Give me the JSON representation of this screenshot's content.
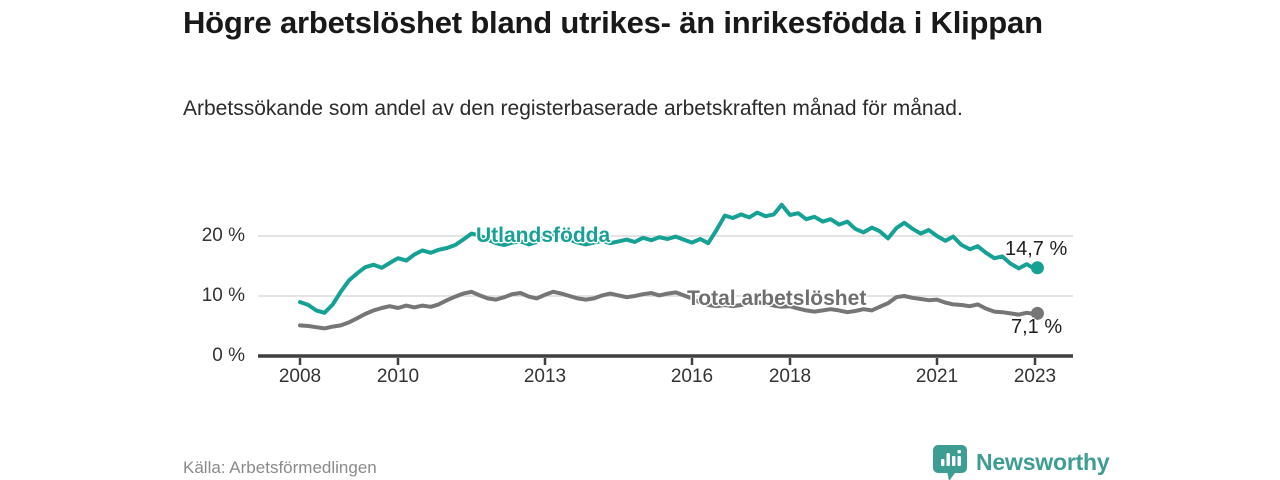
{
  "footer": {
    "source": "Källa: Arbetsförmedlingen",
    "brand": "Newsworthy"
  },
  "colors": {
    "foreign_born": "#16a195",
    "total": "#767676",
    "grid": "#dcdcdc",
    "axis": "#3f3f3f",
    "tick_text": "#333333",
    "value_label": "#1f1f1f",
    "brand_teal": "#3e9d93",
    "title_text": "#191919",
    "source_text": "#8a8a8a"
  },
  "chart_data": {
    "type": "line",
    "title": "Högre arbetslöshet bland utrikes- än inrikesfödda i Klippan",
    "subtitle": "Arbetssökande som andel av den registerbaserade arbetskraften månad för månad.",
    "unit": "%",
    "grid": "horizontal",
    "legend_position": "inline-labels",
    "xlim": [
      2007.9,
      2023.8
    ],
    "ylim": [
      0,
      27
    ],
    "x_ticks": [
      {
        "value": 2008,
        "label": "2008"
      },
      {
        "value": 2010,
        "label": "2010"
      },
      {
        "value": 2013,
        "label": "2013"
      },
      {
        "value": 2016,
        "label": "2016"
      },
      {
        "value": 2018,
        "label": "2018"
      },
      {
        "value": 2021,
        "label": "2021"
      },
      {
        "value": 2023,
        "label": "2023"
      }
    ],
    "y_ticks": [
      {
        "value": 0,
        "label": "0 %"
      },
      {
        "value": 10,
        "label": "10 %"
      },
      {
        "value": 20,
        "label": "20 %"
      }
    ],
    "series": [
      {
        "name": "Utlandsfödda",
        "color_key": "foreign_born",
        "end_label": "14,7 %",
        "end_value": 14.7,
        "points": [
          [
            2008.0,
            9.0
          ],
          [
            2008.17,
            8.5
          ],
          [
            2008.33,
            7.6
          ],
          [
            2008.5,
            7.2
          ],
          [
            2008.67,
            8.6
          ],
          [
            2008.83,
            10.7
          ],
          [
            2009.0,
            12.6
          ],
          [
            2009.17,
            13.8
          ],
          [
            2009.33,
            14.8
          ],
          [
            2009.5,
            15.2
          ],
          [
            2009.67,
            14.7
          ],
          [
            2009.83,
            15.5
          ],
          [
            2010.0,
            16.3
          ],
          [
            2010.17,
            15.9
          ],
          [
            2010.33,
            16.9
          ],
          [
            2010.5,
            17.6
          ],
          [
            2010.67,
            17.2
          ],
          [
            2010.83,
            17.7
          ],
          [
            2011.0,
            18.0
          ],
          [
            2011.17,
            18.5
          ],
          [
            2011.33,
            19.4
          ],
          [
            2011.5,
            20.4
          ],
          [
            2011.67,
            20.1
          ],
          [
            2011.83,
            19.4
          ],
          [
            2012.0,
            18.8
          ],
          [
            2012.17,
            18.5
          ],
          [
            2012.33,
            18.9
          ],
          [
            2012.5,
            19.1
          ],
          [
            2012.67,
            18.6
          ],
          [
            2012.83,
            19.0
          ],
          [
            2013.0,
            19.8
          ],
          [
            2013.17,
            20.2
          ],
          [
            2013.33,
            19.9
          ],
          [
            2013.5,
            19.4
          ],
          [
            2013.67,
            18.9
          ],
          [
            2013.83,
            18.6
          ],
          [
            2014.0,
            18.9
          ],
          [
            2014.17,
            19.2
          ],
          [
            2014.33,
            18.8
          ],
          [
            2014.5,
            19.1
          ],
          [
            2014.67,
            19.4
          ],
          [
            2014.83,
            19.0
          ],
          [
            2015.0,
            19.7
          ],
          [
            2015.17,
            19.3
          ],
          [
            2015.33,
            19.8
          ],
          [
            2015.5,
            19.5
          ],
          [
            2015.67,
            19.9
          ],
          [
            2015.83,
            19.4
          ],
          [
            2016.0,
            18.9
          ],
          [
            2016.17,
            19.5
          ],
          [
            2016.33,
            18.8
          ],
          [
            2016.5,
            21.0
          ],
          [
            2016.67,
            23.4
          ],
          [
            2016.83,
            23.0
          ],
          [
            2017.0,
            23.6
          ],
          [
            2017.17,
            23.1
          ],
          [
            2017.33,
            23.9
          ],
          [
            2017.5,
            23.3
          ],
          [
            2017.67,
            23.6
          ],
          [
            2017.83,
            25.2
          ],
          [
            2018.0,
            23.5
          ],
          [
            2018.17,
            23.8
          ],
          [
            2018.33,
            22.8
          ],
          [
            2018.5,
            23.2
          ],
          [
            2018.67,
            22.4
          ],
          [
            2018.83,
            22.8
          ],
          [
            2019.0,
            21.9
          ],
          [
            2019.17,
            22.4
          ],
          [
            2019.33,
            21.2
          ],
          [
            2019.5,
            20.6
          ],
          [
            2019.67,
            21.4
          ],
          [
            2019.83,
            20.8
          ],
          [
            2020.0,
            19.6
          ],
          [
            2020.17,
            21.3
          ],
          [
            2020.33,
            22.2
          ],
          [
            2020.5,
            21.2
          ],
          [
            2020.67,
            20.4
          ],
          [
            2020.83,
            21.0
          ],
          [
            2021.0,
            20.0
          ],
          [
            2021.17,
            19.2
          ],
          [
            2021.33,
            19.9
          ],
          [
            2021.5,
            18.5
          ],
          [
            2021.67,
            17.8
          ],
          [
            2021.83,
            18.3
          ],
          [
            2022.0,
            17.2
          ],
          [
            2022.17,
            16.3
          ],
          [
            2022.33,
            16.6
          ],
          [
            2022.5,
            15.4
          ],
          [
            2022.67,
            14.6
          ],
          [
            2022.83,
            15.3
          ],
          [
            2023.0,
            14.5
          ],
          [
            2023.05,
            14.7
          ]
        ]
      },
      {
        "name": "Total arbetslöshet",
        "color_key": "total",
        "end_label": "7,1 %",
        "end_value": 7.1,
        "points": [
          [
            2008.0,
            5.1
          ],
          [
            2008.17,
            5.0
          ],
          [
            2008.33,
            4.8
          ],
          [
            2008.5,
            4.6
          ],
          [
            2008.67,
            4.9
          ],
          [
            2008.83,
            5.1
          ],
          [
            2009.0,
            5.6
          ],
          [
            2009.17,
            6.3
          ],
          [
            2009.33,
            7.0
          ],
          [
            2009.5,
            7.6
          ],
          [
            2009.67,
            8.0
          ],
          [
            2009.83,
            8.3
          ],
          [
            2010.0,
            8.0
          ],
          [
            2010.17,
            8.4
          ],
          [
            2010.33,
            8.1
          ],
          [
            2010.5,
            8.4
          ],
          [
            2010.67,
            8.2
          ],
          [
            2010.83,
            8.6
          ],
          [
            2011.0,
            9.3
          ],
          [
            2011.17,
            9.9
          ],
          [
            2011.33,
            10.4
          ],
          [
            2011.5,
            10.7
          ],
          [
            2011.67,
            10.1
          ],
          [
            2011.83,
            9.6
          ],
          [
            2012.0,
            9.4
          ],
          [
            2012.17,
            9.8
          ],
          [
            2012.33,
            10.3
          ],
          [
            2012.5,
            10.5
          ],
          [
            2012.67,
            9.9
          ],
          [
            2012.83,
            9.6
          ],
          [
            2013.0,
            10.2
          ],
          [
            2013.17,
            10.7
          ],
          [
            2013.33,
            10.4
          ],
          [
            2013.5,
            10.0
          ],
          [
            2013.67,
            9.6
          ],
          [
            2013.83,
            9.4
          ],
          [
            2014.0,
            9.6
          ],
          [
            2014.17,
            10.1
          ],
          [
            2014.33,
            10.4
          ],
          [
            2014.5,
            10.1
          ],
          [
            2014.67,
            9.8
          ],
          [
            2014.83,
            10.0
          ],
          [
            2015.0,
            10.3
          ],
          [
            2015.17,
            10.5
          ],
          [
            2015.33,
            10.1
          ],
          [
            2015.5,
            10.4
          ],
          [
            2015.67,
            10.6
          ],
          [
            2015.83,
            10.1
          ],
          [
            2016.0,
            9.6
          ],
          [
            2016.17,
            8.9
          ],
          [
            2016.33,
            8.5
          ],
          [
            2016.5,
            8.3
          ],
          [
            2016.67,
            8.5
          ],
          [
            2016.83,
            8.3
          ],
          [
            2017.0,
            8.5
          ],
          [
            2017.17,
            8.8
          ],
          [
            2017.33,
            9.0
          ],
          [
            2017.5,
            8.7
          ],
          [
            2017.67,
            8.4
          ],
          [
            2017.83,
            8.2
          ],
          [
            2018.0,
            8.3
          ],
          [
            2018.17,
            7.9
          ],
          [
            2018.33,
            7.6
          ],
          [
            2018.5,
            7.4
          ],
          [
            2018.67,
            7.6
          ],
          [
            2018.83,
            7.8
          ],
          [
            2019.0,
            7.6
          ],
          [
            2019.17,
            7.3
          ],
          [
            2019.33,
            7.5
          ],
          [
            2019.5,
            7.8
          ],
          [
            2019.67,
            7.6
          ],
          [
            2019.83,
            8.2
          ],
          [
            2020.0,
            8.8
          ],
          [
            2020.17,
            9.8
          ],
          [
            2020.33,
            10.0
          ],
          [
            2020.5,
            9.7
          ],
          [
            2020.67,
            9.5
          ],
          [
            2020.83,
            9.3
          ],
          [
            2021.0,
            9.4
          ],
          [
            2021.17,
            8.9
          ],
          [
            2021.33,
            8.6
          ],
          [
            2021.5,
            8.5
          ],
          [
            2021.67,
            8.3
          ],
          [
            2021.83,
            8.6
          ],
          [
            2022.0,
            7.9
          ],
          [
            2022.17,
            7.4
          ],
          [
            2022.33,
            7.3
          ],
          [
            2022.5,
            7.1
          ],
          [
            2022.67,
            6.9
          ],
          [
            2022.83,
            7.2
          ],
          [
            2023.0,
            7.0
          ],
          [
            2023.05,
            7.1
          ]
        ]
      }
    ]
  }
}
